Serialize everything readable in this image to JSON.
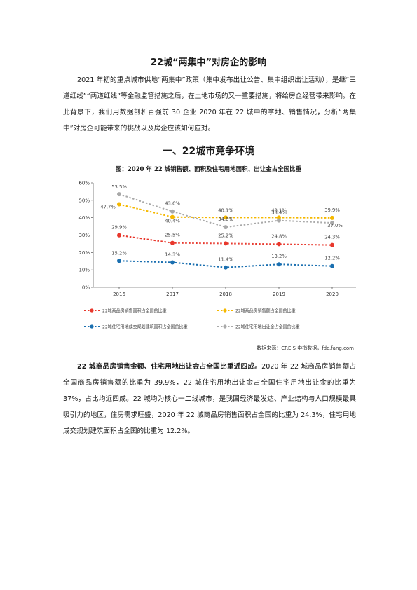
{
  "doc": {
    "title": "22城“两集中”对房企的影响",
    "intro": "2021 年初的重点城市供地“两集中”政策（集中发布出让公告、集中组织出让活动），是继“三道红线”“两道红线”等金融监管措施之后，在土地市场的又一重要措施，将给房企经营带来影响。在此背景下，我们用数据剖析百强前 30 企业 2020 年在 22 城中的拿地、销售情况，分析“两集中”对房企可能带来的挑战以及房企应该如何应对。",
    "section_heading": "一、22城市竞争环境",
    "figure_title": "图：2020 年 22 城销售额、面积及住宅用地面积、出让金占全国比重",
    "source": "数据来源：CREIS 中指数据，fdc.fang.com",
    "summary_lead": "22 城商品房销售金额、住宅用地出让金占全国比重近四成。",
    "summary_body": "2020 年 22 城商品房销售额占全国商品房销售额的比重为 39.9%，22 城住宅用地出让金占全国住宅用地出让金的比重为 37%，占比均近四成。22 城均为核心一二线城市，是我国经济最发达、产业结构与人口规模最具吸引力的地区，住房需求旺盛，2020 年 22 城商品房销售面积占全国的比重为 24.3%，住宅用地成交规划建筑面积占全国的比重为 12.2%。"
  },
  "chart_data": {
    "type": "line",
    "categories": [
      "2016",
      "2017",
      "2018",
      "2019",
      "2020"
    ],
    "y_ticks": [
      "0%",
      "10%",
      "20%",
      "30%",
      "40%",
      "50%",
      "60%"
    ],
    "ylim": [
      0,
      60
    ],
    "grid": false,
    "legend_position": "bottom",
    "series": [
      {
        "name": "22城商品房销售面积占全国的比重",
        "color": "#e8372c",
        "values": [
          29.9,
          25.5,
          25.2,
          24.8,
          24.3
        ],
        "labels": [
          "29.9%",
          "25.5%",
          "25.2%",
          "24.8%",
          "24.3%"
        ]
      },
      {
        "name": "22城商品房销售额占全国的比重",
        "color": "#f5b800",
        "values": [
          47.7,
          40.4,
          40.1,
          40.1,
          39.9
        ],
        "labels": [
          "47.7%",
          "40.4%",
          "40.1%",
          "40.1%",
          "39.9%"
        ]
      },
      {
        "name": "22城住宅用地成交规划建筑面积占全国的比重",
        "color": "#1a6fb0",
        "values": [
          15.2,
          14.3,
          11.4,
          13.2,
          12.2
        ],
        "labels": [
          "15.2%",
          "14.3%",
          "11.4%",
          "13.2%",
          "12.2%"
        ]
      },
      {
        "name": "22城住宅用地出让金占全国的比重",
        "color": "#a9a9a9",
        "values": [
          53.5,
          43.6,
          34.6,
          38.4,
          37.0
        ],
        "labels": [
          "53.5%",
          "43.6%",
          "34.6%",
          "38.4%",
          "37.0%"
        ]
      }
    ]
  }
}
